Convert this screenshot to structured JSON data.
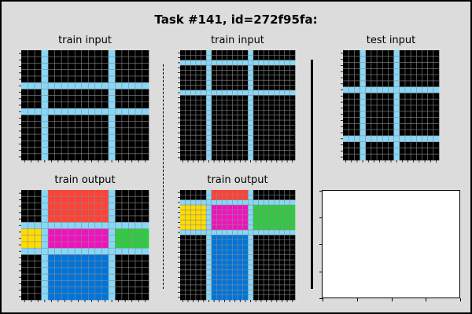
{
  "title": "Task #141, id=272f95fa:",
  "colors": {
    "0": "#000000",
    "1": "#0074d9",
    "2": "#ff4136",
    "3": "#2ecc40",
    "4": "#ffdc00",
    "6": "#f012be",
    "8": "#87d8f8"
  },
  "panels": [
    {
      "label": "train input",
      "grid": "g1in"
    },
    {
      "label": "train output",
      "grid": "g1out"
    },
    {
      "label": "train input",
      "grid": "g2in"
    },
    {
      "label": "train output",
      "grid": "g2out"
    },
    {
      "label": "test input",
      "grid": "g3in"
    }
  ],
  "grids": {
    "g1in": {
      "rows": 17,
      "cols": 19,
      "hlines": [
        5,
        9
      ],
      "vlines": [
        3,
        13
      ],
      "fill": {}
    },
    "g1out": {
      "rows": 17,
      "cols": 19,
      "hlines": [
        5,
        9
      ],
      "vlines": [
        3,
        13
      ],
      "fill": {
        "top": 2,
        "left": 4,
        "center": 6,
        "right": 3,
        "bottom": 1
      }
    },
    "g2in": {
      "rows": 22,
      "cols": 22,
      "hlines": [
        2,
        8
      ],
      "vlines": [
        5,
        13
      ],
      "fill": {}
    },
    "g2out": {
      "rows": 22,
      "cols": 22,
      "hlines": [
        2,
        8
      ],
      "vlines": [
        5,
        13
      ],
      "fill": {
        "top": 2,
        "left": 4,
        "center": 6,
        "right": 3,
        "bottom": 1
      }
    },
    "g3in": {
      "rows": 18,
      "cols": 17,
      "hlines": [
        6,
        14
      ],
      "vlines": [
        3,
        9
      ],
      "fill": {}
    }
  }
}
